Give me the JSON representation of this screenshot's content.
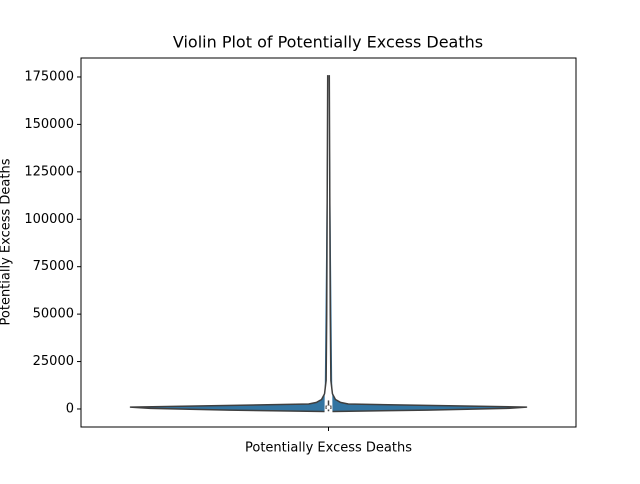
{
  "chart_data": {
    "type": "violin",
    "title": "Violin Plot of Potentially Excess Deaths",
    "ylabel": "Potentially Excess Deaths",
    "categories": [
      "Potentially Excess Deaths"
    ],
    "color": "#3274a1",
    "edge_color": "#3f3f3f",
    "ylim": [
      -9500,
      185000
    ],
    "yticks": [
      0,
      25000,
      50000,
      75000,
      100000,
      125000,
      150000,
      175000
    ],
    "violin": {
      "values": [
        -1300,
        -600,
        300,
        1000,
        2600,
        3500,
        5000,
        8000,
        15000,
        50000,
        100000,
        176000
      ],
      "density": [
        0.02,
        0.5,
        0.9,
        1.0,
        0.1,
        0.06,
        0.035,
        0.02,
        0.012,
        0.009,
        0.007,
        0.004
      ]
    },
    "box": {
      "whisker_low": -1200,
      "q1": 0,
      "median": 800,
      "q3": 1800,
      "whisker_high": 4500
    }
  }
}
